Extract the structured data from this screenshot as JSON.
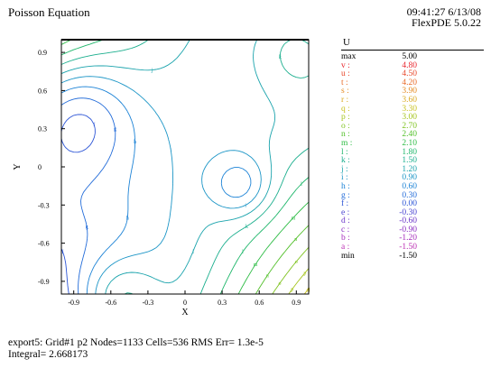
{
  "header": {
    "title": "Poisson Equation",
    "timestamp": "09:41:27 6/13/08",
    "version": "FlexPDE 5.0.22"
  },
  "chart_data": {
    "type": "contour",
    "variable": "U",
    "xlabel": "X",
    "ylabel": "Y",
    "xlim": [
      -1.0,
      1.0
    ],
    "ylim": [
      -1.0,
      1.0
    ],
    "x_ticks": [
      "-0.9",
      "-0.6",
      "-0.3",
      "0",
      "0.3",
      "0.6",
      "0.9"
    ],
    "y_ticks": [
      "0.9",
      "0.6",
      "0.3",
      "0",
      "-0.3",
      "-0.6",
      "-0.9"
    ],
    "max": "5.00",
    "min": "-1.50",
    "levels": [
      {
        "label": "v",
        "value": "4.80",
        "color": "#e8242c"
      },
      {
        "label": "u",
        "value": "4.50",
        "color": "#e8472a"
      },
      {
        "label": "t",
        "value": "4.20",
        "color": "#e96a27"
      },
      {
        "label": "s",
        "value": "3.90",
        "color": "#e58b24"
      },
      {
        "label": "r",
        "value": "3.60",
        "color": "#dba922"
      },
      {
        "label": "q",
        "value": "3.30",
        "color": "#c8c11f"
      },
      {
        "label": "p",
        "value": "3.00",
        "color": "#a6c51e"
      },
      {
        "label": "o",
        "value": "2.70",
        "color": "#7fc320"
      },
      {
        "label": "n",
        "value": "2.40",
        "color": "#52c02a"
      },
      {
        "label": "m",
        "value": "2.10",
        "color": "#2dbc45"
      },
      {
        "label": "l",
        "value": "1.80",
        "color": "#1eb66a"
      },
      {
        "label": "k",
        "value": "1.50",
        "color": "#1aae8d"
      },
      {
        "label": "j",
        "value": "1.20",
        "color": "#1aa3ac"
      },
      {
        "label": "i",
        "value": "0.90",
        "color": "#1b95c6"
      },
      {
        "label": "h",
        "value": "0.60",
        "color": "#1d83d6"
      },
      {
        "label": "g",
        "value": "0.30",
        "color": "#236cd9"
      },
      {
        "label": "f",
        "value": "0.00",
        "color": "#2c55d6"
      },
      {
        "label": "e",
        "value": "-0.30",
        "color": "#4640cf"
      },
      {
        "label": "d",
        "value": "-0.60",
        "color": "#6a34c8"
      },
      {
        "label": "c",
        "value": "-0.90",
        "color": "#8b2dc2"
      },
      {
        "label": "b",
        "value": "-1.20",
        "color": "#a52bbb"
      },
      {
        "label": "a",
        "value": "-1.50",
        "color": "#bb2fb3"
      }
    ]
  },
  "legend": {
    "title": "U",
    "max_label": "max",
    "min_label": "min"
  },
  "footer": {
    "line1": "export5:  Grid#1  p2  Nodes=1133 Cells=536 RMS Err= 1.3e-5",
    "line2": "Integral=  2.668173"
  }
}
